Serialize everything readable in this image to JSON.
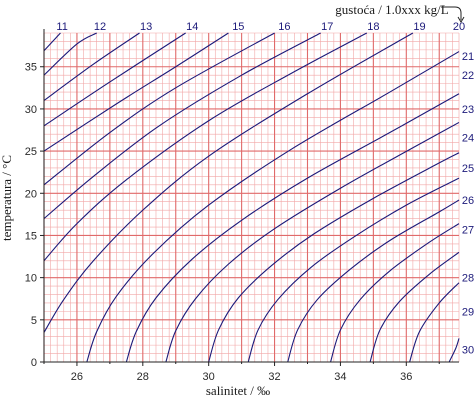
{
  "chart_data": {
    "type": "line",
    "title": "",
    "xlabel": "salinitet / ‰",
    "ylabel": "temperatura / °C",
    "xlim": [
      25,
      37.6
    ],
    "ylim": [
      0,
      39
    ],
    "x_ticks": [
      26,
      28,
      30,
      32,
      34,
      36
    ],
    "y_ticks": [
      0,
      5,
      10,
      15,
      20,
      25,
      30,
      35
    ],
    "contour_title": "gustoća / 1.0xxx kg/L",
    "grid": {
      "minor_step_x": 0.2,
      "minor_step_y": 1,
      "major_step_x": 1,
      "major_step_y": 5
    },
    "series": [
      {
        "name": "11",
        "top_label_x": 25.55,
        "points": [
          [
            25,
            36.9
          ],
          [
            25.5,
            39.2
          ]
        ]
      },
      {
        "name": "12",
        "top_label_x": 26.7,
        "points": [
          [
            25,
            34.0
          ],
          [
            26.0,
            37.7
          ],
          [
            26.6,
            39.5
          ]
        ]
      },
      {
        "name": "13",
        "top_label_x": 28.1,
        "points": [
          [
            25,
            31.0
          ],
          [
            26.5,
            35.3
          ],
          [
            27.9,
            39.3
          ]
        ]
      },
      {
        "name": "14",
        "top_label_x": 29.5,
        "points": [
          [
            25,
            28.0
          ],
          [
            27.0,
            33.2
          ],
          [
            29.3,
            39.2
          ]
        ]
      },
      {
        "name": "15",
        "top_label_x": 30.9,
        "points": [
          [
            25,
            25.0
          ],
          [
            27.2,
            30.6
          ],
          [
            29.0,
            35.0
          ],
          [
            30.6,
            39.3
          ]
        ]
      },
      {
        "name": "16",
        "top_label_x": 32.3,
        "points": [
          [
            25,
            21.0
          ],
          [
            27.0,
            27.2
          ],
          [
            29.0,
            32.5
          ],
          [
            32.0,
            39.2
          ]
        ]
      },
      {
        "name": "17",
        "top_label_x": 33.6,
        "points": [
          [
            25,
            17.0
          ],
          [
            26.5,
            22.0
          ],
          [
            28.5,
            28.0
          ],
          [
            31.0,
            34.0
          ],
          [
            33.4,
            39.2
          ]
        ]
      },
      {
        "name": "18",
        "top_label_x": 35.0,
        "points": [
          [
            25,
            12.0
          ],
          [
            26.0,
            16.4
          ],
          [
            27.5,
            21.6
          ],
          [
            30.0,
            28.6
          ],
          [
            32.5,
            34.2
          ],
          [
            34.8,
            39.2
          ]
        ]
      },
      {
        "name": "19",
        "top_label_x": 36.4,
        "points": [
          [
            25,
            3.5
          ],
          [
            25.6,
            7.4
          ],
          [
            26.5,
            12.0
          ],
          [
            28.0,
            18.0
          ],
          [
            30.0,
            24.4
          ],
          [
            33.0,
            31.8
          ],
          [
            36.2,
            39.2
          ]
        ]
      },
      {
        "name": "20",
        "top_label_x": 37.6,
        "points": [
          [
            26.3,
            0
          ],
          [
            26.6,
            3.6
          ],
          [
            27.2,
            7.8
          ],
          [
            28.3,
            12.8
          ],
          [
            30.0,
            18.6
          ],
          [
            32.5,
            25.2
          ],
          [
            35.5,
            32.0
          ],
          [
            37.6,
            36.8
          ]
        ]
      },
      {
        "name": "21",
        "right_label_y": 36.3,
        "points": [
          [
            27.5,
            0
          ],
          [
            27.8,
            3.6
          ],
          [
            28.4,
            7.6
          ],
          [
            29.5,
            12.2
          ],
          [
            31.0,
            16.8
          ],
          [
            33.0,
            21.8
          ],
          [
            35.5,
            27.2
          ],
          [
            37.6,
            31.8
          ]
        ]
      },
      {
        "name": "22",
        "right_label_y": 34.0,
        "points": [
          [
            28.7,
            0
          ],
          [
            29.0,
            3.7
          ],
          [
            29.6,
            7.5
          ],
          [
            30.6,
            11.6
          ],
          [
            32.0,
            15.8
          ],
          [
            34.0,
            20.6
          ],
          [
            36.2,
            25.4
          ],
          [
            37.6,
            28.4
          ]
        ]
      },
      {
        "name": "23",
        "right_label_y": 30.0,
        "points": [
          [
            30.0,
            0
          ],
          [
            30.3,
            3.8
          ],
          [
            30.9,
            7.6
          ],
          [
            31.9,
            11.4
          ],
          [
            33.2,
            15.2
          ],
          [
            35.0,
            19.4
          ],
          [
            37.0,
            23.6
          ],
          [
            37.6,
            24.8
          ]
        ]
      },
      {
        "name": "24",
        "right_label_y": 26.6,
        "points": [
          [
            31.2,
            0
          ],
          [
            31.5,
            3.8
          ],
          [
            32.1,
            7.4
          ],
          [
            33.1,
            11.2
          ],
          [
            34.4,
            14.8
          ],
          [
            36.0,
            18.6
          ],
          [
            37.6,
            21.8
          ]
        ]
      },
      {
        "name": "25",
        "right_label_y": 23.0,
        "points": [
          [
            32.4,
            0
          ],
          [
            32.7,
            3.8
          ],
          [
            33.3,
            7.4
          ],
          [
            34.3,
            11.0
          ],
          [
            35.5,
            14.4
          ],
          [
            37.0,
            17.8
          ],
          [
            37.6,
            19.2
          ]
        ]
      },
      {
        "name": "26",
        "right_label_y": 19.2,
        "points": [
          [
            33.7,
            0
          ],
          [
            34.0,
            3.8
          ],
          [
            34.6,
            7.4
          ],
          [
            35.5,
            10.8
          ],
          [
            36.7,
            14.2
          ],
          [
            37.6,
            16.4
          ]
        ]
      },
      {
        "name": "27",
        "right_label_y": 15.7,
        "points": [
          [
            34.9,
            0
          ],
          [
            35.2,
            3.8
          ],
          [
            35.8,
            7.2
          ],
          [
            36.7,
            10.4
          ],
          [
            37.6,
            13.0
          ]
        ]
      },
      {
        "name": "28",
        "right_label_y": 10.0,
        "points": [
          [
            36.1,
            0
          ],
          [
            36.4,
            3.6
          ],
          [
            37.0,
            7.0
          ],
          [
            37.6,
            9.4
          ]
        ]
      },
      {
        "name": "29",
        "right_label_y": 6.0,
        "points": [
          [
            37.3,
            0
          ],
          [
            37.5,
            1.6
          ],
          [
            37.6,
            2.8
          ]
        ]
      },
      {
        "name": "30",
        "right_label_y": 1.5,
        "points": []
      }
    ]
  },
  "colors": {
    "minor_grid": "#f2a7a7",
    "major_grid": "#e06a6a",
    "contour": "#1c1a7a",
    "axis": "#222222"
  }
}
